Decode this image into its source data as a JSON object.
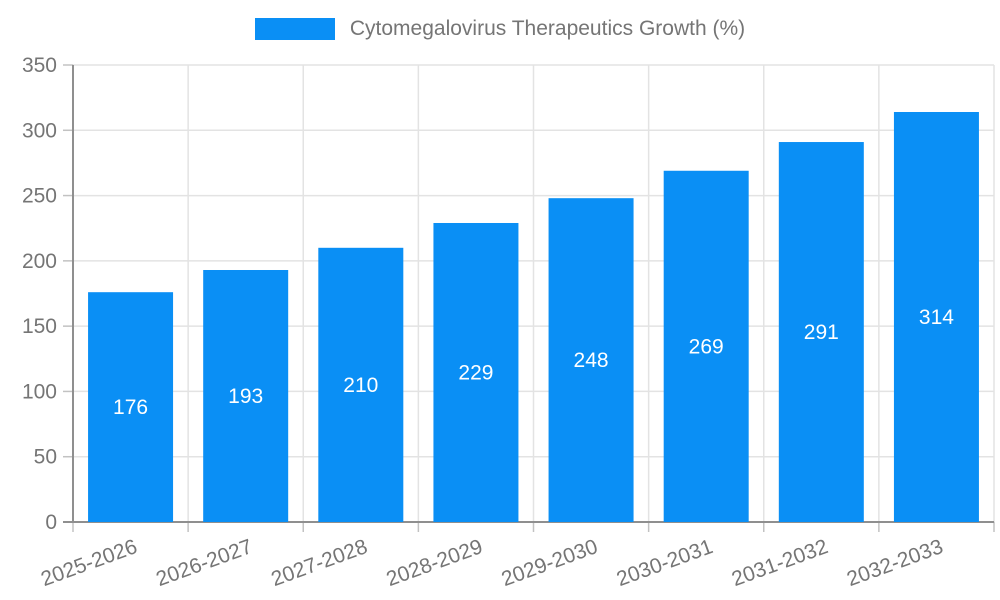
{
  "chart_data": {
    "type": "bar",
    "title": "Cytomegalovirus Therapeutics Growth (%)",
    "legend": {
      "position": "top",
      "entries": [
        "Cytomegalovirus Therapeutics Growth (%)"
      ]
    },
    "categories": [
      "2025-2026",
      "2026-2027",
      "2027-2028",
      "2028-2029",
      "2029-2030",
      "2030-2031",
      "2031-2032",
      "2032-2033"
    ],
    "series": [
      {
        "name": "Cytomegalovirus Therapeutics Growth (%)",
        "values": [
          176,
          193,
          210,
          229,
          248,
          269,
          291,
          314
        ]
      }
    ],
    "bar_value_labels": [
      "176",
      "193",
      "210",
      "229",
      "248",
      "269",
      "291",
      "314"
    ],
    "xlabel": "",
    "ylabel": "",
    "ylim": [
      0,
      350
    ],
    "yticks": [
      0,
      50,
      100,
      150,
      200,
      250,
      300,
      350
    ],
    "grid": true,
    "x_label_rotation_deg": -20
  },
  "colors": {
    "bar": "#0a8ff5",
    "bar_label": "#ffffff",
    "axis_line": "#8f8f8f",
    "gridline": "#e3e3e3",
    "tick": "#c2c2c2",
    "text": "#757575",
    "background": "#ffffff"
  }
}
